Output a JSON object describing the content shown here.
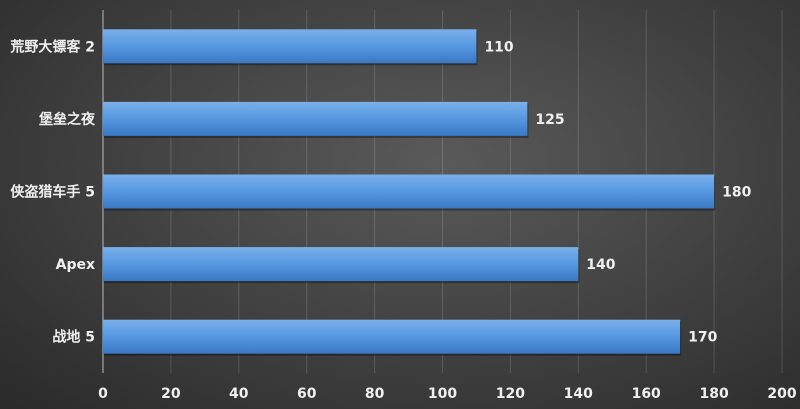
{
  "chart_data": {
    "type": "bar",
    "orientation": "horizontal",
    "categories": [
      "荒野大镖客 2",
      "堡垒之夜",
      "侠盗猎车手 5",
      "Apex",
      "战地 5"
    ],
    "values": [
      110,
      125,
      180,
      140,
      170
    ],
    "xlim": [
      0,
      200
    ],
    "xticks": [
      0,
      20,
      40,
      60,
      80,
      100,
      120,
      140,
      160,
      180,
      200
    ],
    "grid": "vertical",
    "data_labels": true,
    "bar_color": "#4f90d8",
    "background_color": "#444444"
  }
}
